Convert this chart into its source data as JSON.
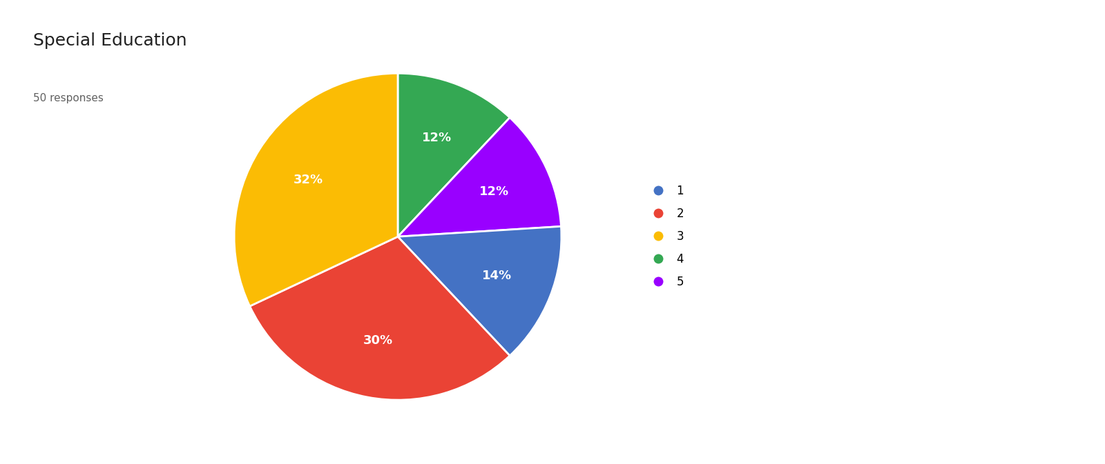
{
  "title": "Special Education",
  "subtitle": "50 responses",
  "slices": [
    {
      "label": "1",
      "pct": 14,
      "color": "#4472C4"
    },
    {
      "label": "2",
      "pct": 30,
      "color": "#EA4335"
    },
    {
      "label": "3",
      "pct": 32,
      "color": "#FBBC04"
    },
    {
      "label": "4",
      "pct": 12,
      "color": "#34A853"
    },
    {
      "label": "5",
      "pct": 12,
      "color": "#9900FF"
    }
  ],
  "ordered_slices": [
    {
      "label": "4",
      "pct": 12,
      "color": "#34A853"
    },
    {
      "label": "5",
      "pct": 12,
      "color": "#9900FF"
    },
    {
      "label": "1",
      "pct": 14,
      "color": "#4472C4"
    },
    {
      "label": "2",
      "pct": 30,
      "color": "#EA4335"
    },
    {
      "label": "3",
      "pct": 32,
      "color": "#FBBC04"
    }
  ],
  "background_color": "#FFFFFF",
  "title_fontsize": 18,
  "subtitle_fontsize": 11,
  "label_fontsize": 13,
  "legend_fontsize": 12,
  "startangle": 90,
  "title_color": "#212121",
  "subtitle_color": "#616161",
  "label_color": "#FFFFFF"
}
